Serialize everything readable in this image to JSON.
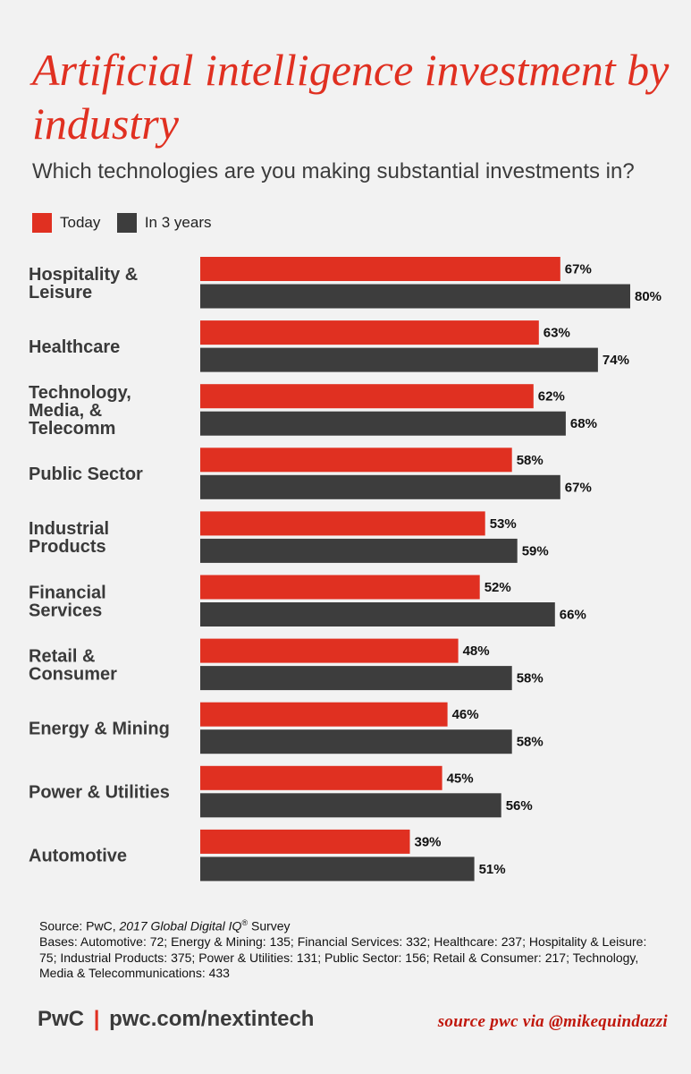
{
  "title": "Artificial intelligence investment by industry",
  "subtitle": "Which technologies are you making substantial investments in?",
  "colors": {
    "today": "#e03021",
    "in3years": "#3d3d3d",
    "background": "#f2f2f2",
    "accent": "#e03021"
  },
  "legend": {
    "today_label": "Today",
    "future_label": "In 3 years"
  },
  "chart_data": {
    "type": "bar",
    "orientation": "horizontal",
    "title": "Artificial intelligence investment by industry",
    "subtitle": "Which technologies are you making substantial investments in?",
    "categories": [
      "Hospitality & Leisure",
      "Healthcare",
      "Technology, Media, & Telecomm",
      "Public Sector",
      "Industrial Products",
      "Financial Services",
      "Retail & Consumer",
      "Energy & Mining",
      "Power & Utilities",
      "Automotive"
    ],
    "series": [
      {
        "name": "Today",
        "values": [
          67,
          63,
          62,
          58,
          53,
          52,
          48,
          46,
          45,
          39
        ]
      },
      {
        "name": "In 3 years",
        "values": [
          80,
          74,
          68,
          67,
          59,
          66,
          58,
          58,
          56,
          51
        ]
      }
    ],
    "value_suffix": "%",
    "xlim": [
      0,
      100
    ],
    "grid": false,
    "legend_position": "top-left"
  },
  "category_display": [
    [
      "Hospitality &",
      "Leisure"
    ],
    [
      "Healthcare"
    ],
    [
      "Technology,",
      "Media, &",
      "Telecomm"
    ],
    [
      "Public Sector"
    ],
    [
      "Industrial",
      "Products"
    ],
    [
      "Financial",
      "Services"
    ],
    [
      "Retail &",
      "Consumer"
    ],
    [
      "Energy & Mining"
    ],
    [
      "Power & Utilities"
    ],
    [
      "Automotive"
    ]
  ],
  "source": {
    "prefix": "Source: PwC, ",
    "survey": "2017 Global Digital IQ",
    "mark": "®",
    "suffix": " Survey",
    "bases": "Bases: Automotive: 72; Energy & Mining: 135; Financial Services: 332; Healthcare: 237; Hospitality & Leisure: 75; Industrial Products: 375; Power & Utilities: 131; Public Sector: 156; Retail & Consumer: 217; Technology, Media & Telecommunications: 433"
  },
  "footer": {
    "brand": "PwC",
    "separator": "|",
    "url": "pwc.com/nextintech"
  },
  "credit": "source pwc via @mikequindazzi"
}
